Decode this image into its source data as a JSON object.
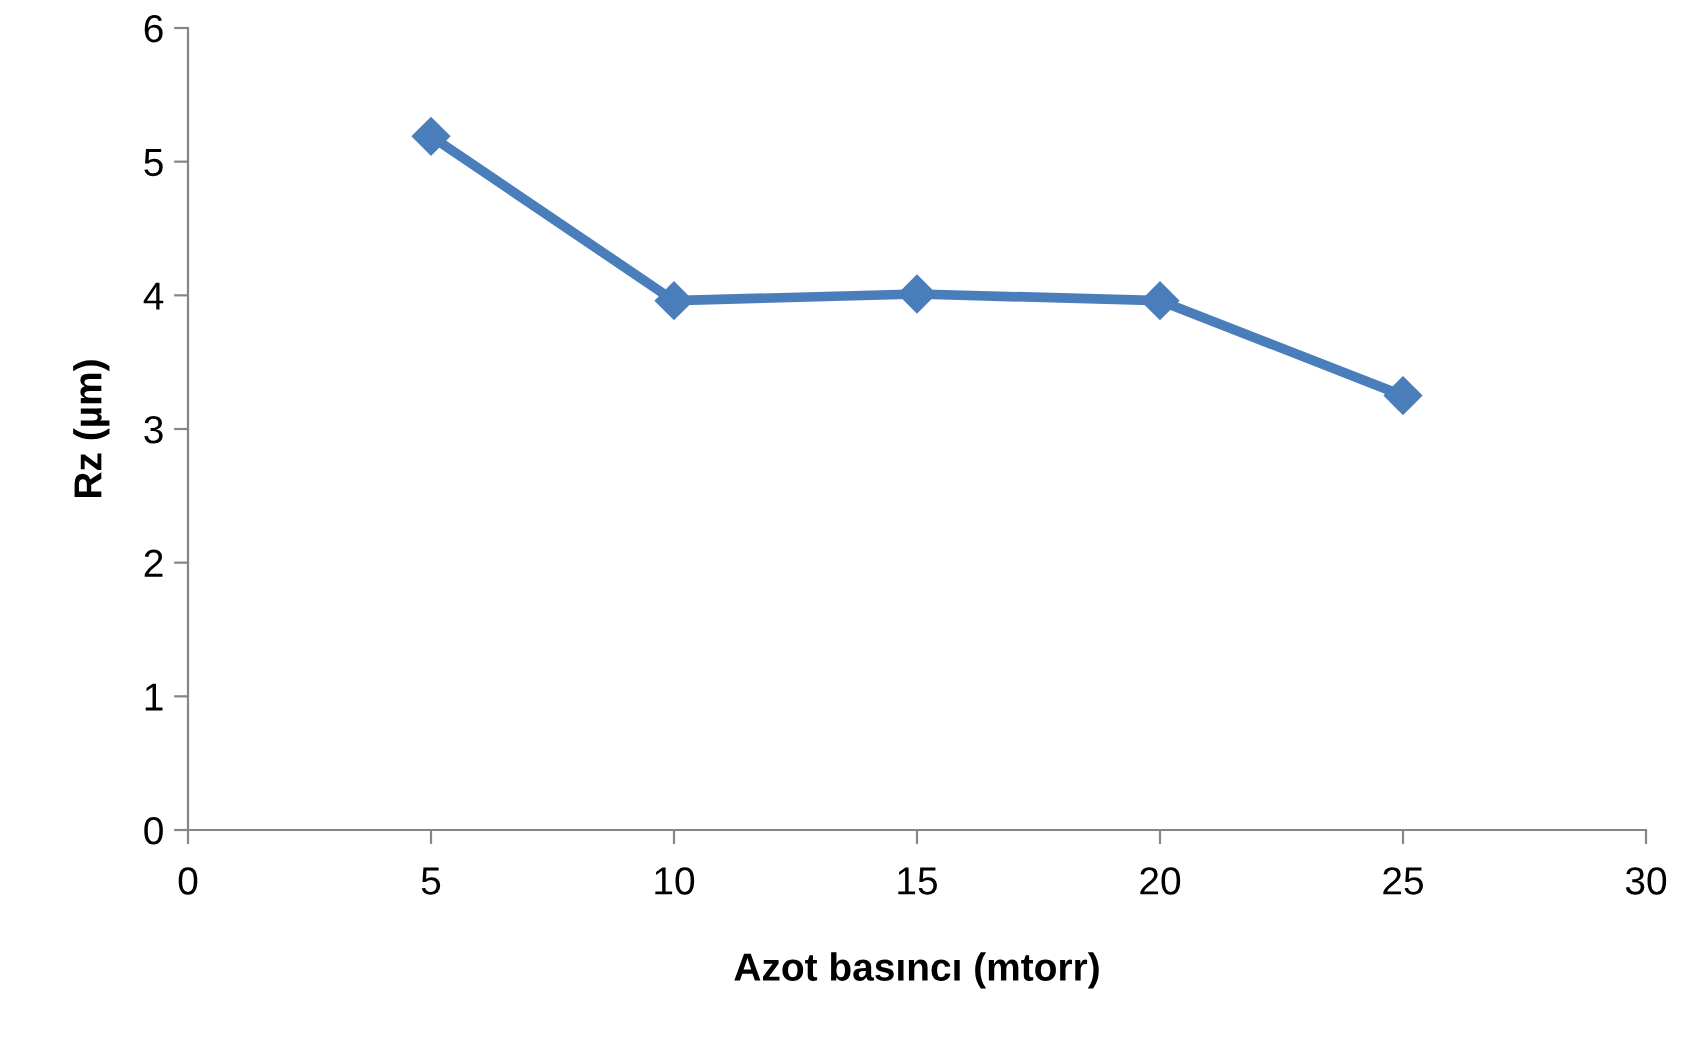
{
  "chart_data": {
    "type": "line",
    "xlabel": "Azot basıncı (mtorr)",
    "ylabel": "Rz (µm)",
    "x": [
      5,
      10,
      15,
      20,
      25
    ],
    "series": [
      {
        "color": "#4a7ebb",
        "values": [
          5.19,
          3.96,
          4.01,
          3.96,
          3.25
        ]
      }
    ],
    "xlim": [
      0,
      30
    ],
    "xticks": [
      0,
      5,
      10,
      15,
      20,
      25,
      30
    ],
    "ylim": [
      0,
      6
    ],
    "yticks": [
      0,
      1,
      2,
      3,
      4,
      5,
      6
    ],
    "marker": "diamond",
    "line_style": "solid",
    "grid": false,
    "legend": false
  }
}
